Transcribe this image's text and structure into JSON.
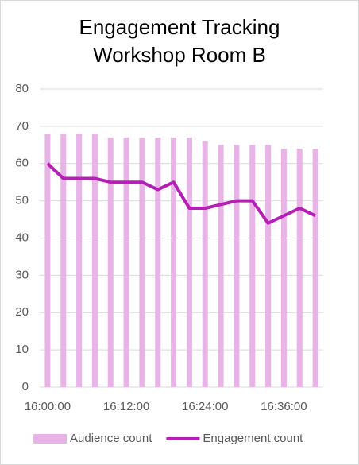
{
  "chart_data": {
    "type": "bar_line",
    "title": [
      "Engagement Tracking",
      "Workshop Room B"
    ],
    "categories": [
      "16:00:00",
      null,
      null,
      null,
      null,
      "16:12:00",
      null,
      null,
      null,
      null,
      "16:24:00",
      null,
      null,
      null,
      null,
      "16:36:00",
      null,
      null
    ],
    "series": [
      {
        "name": "Audience count",
        "type": "bar",
        "color": "#e8b4e8",
        "values": [
          68,
          68,
          68,
          68,
          67,
          67,
          67,
          67,
          67,
          67,
          66,
          65,
          65,
          65,
          65,
          64,
          64,
          64
        ]
      },
      {
        "name": "Engagement count",
        "type": "line",
        "color": "#b51fb5",
        "values": [
          60,
          56,
          56,
          56,
          55,
          55,
          55,
          53,
          55,
          48,
          48,
          49,
          50,
          50,
          44,
          46,
          48,
          46
        ]
      }
    ],
    "ylim": [
      0,
      80
    ],
    "yticks": [
      0,
      10,
      20,
      30,
      40,
      50,
      60,
      70,
      80
    ],
    "grid": true,
    "legend": "bottom"
  }
}
